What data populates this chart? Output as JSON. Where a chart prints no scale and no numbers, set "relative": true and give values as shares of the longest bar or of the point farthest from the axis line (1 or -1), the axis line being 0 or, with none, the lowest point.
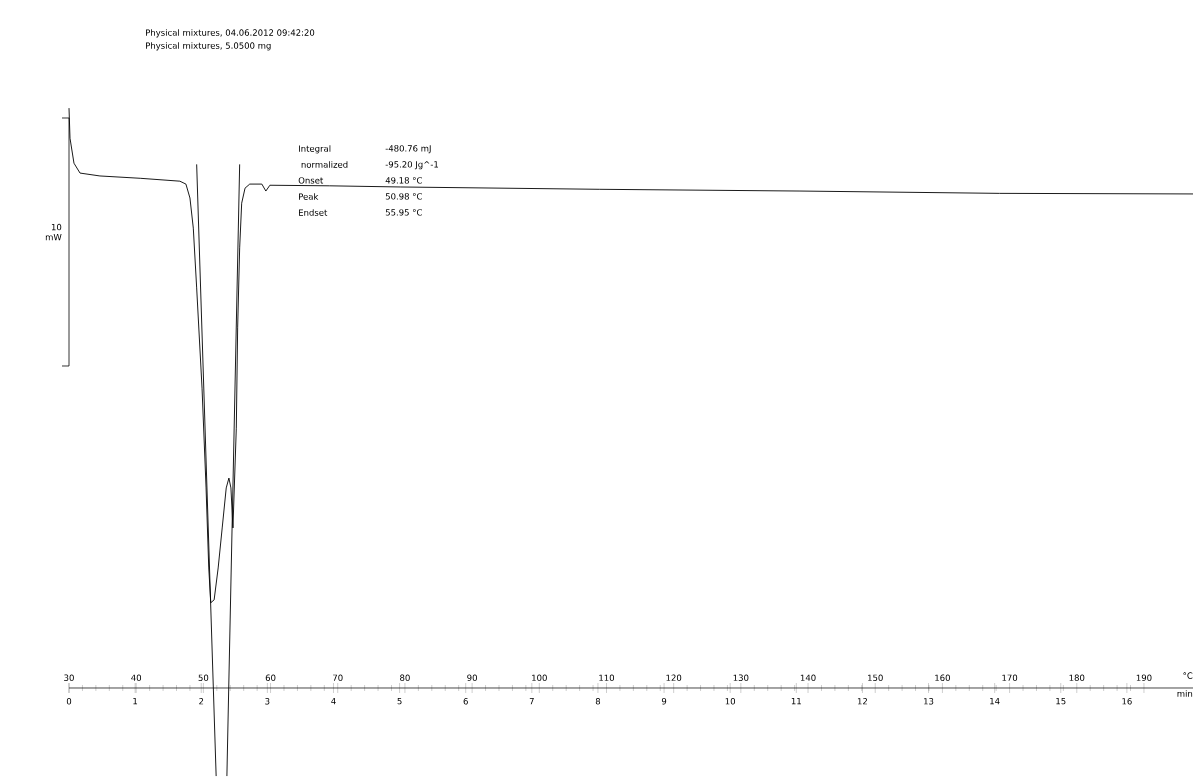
{
  "chart_data": {
    "type": "line",
    "relative": true,
    "marker": "none",
    "line_style": "solid",
    "xlim": [
      30,
      197.3
    ],
    "xticks": [
      30,
      40,
      50,
      60,
      70,
      80,
      90,
      100,
      110,
      120,
      130,
      140,
      150,
      160,
      170,
      180,
      190
    ],
    "x2lim": [
      0,
      17.0
    ],
    "x2ticks": [
      0,
      1,
      2,
      3,
      4,
      5,
      6,
      7,
      8,
      9,
      10,
      11,
      12,
      13,
      14,
      15,
      16
    ],
    "xlabel": "°C",
    "x2label": "min",
    "series": [
      {
        "color": "#000000",
        "x": [
          30.0,
          30.15,
          30.74,
          31.64,
          34.6,
          40.6,
          46.5,
          47.4,
          48.0,
          48.5,
          49.0,
          49.8,
          50.4,
          50.8,
          51.1,
          51.6,
          52.2,
          52.8,
          53.4,
          53.8,
          54.1,
          54.4,
          54.9,
          55.1,
          55.4,
          55.7,
          56.2,
          56.9,
          58.7,
          59.3,
          59.9,
          68.8,
          79.3,
          109.0,
          138.8,
          168.5,
          197.3
        ],
        "values": [
          1.0,
          0.948,
          0.905,
          0.888,
          0.883,
          0.879,
          0.874,
          0.869,
          0.845,
          0.793,
          0.69,
          0.517,
          0.345,
          0.207,
          0.147,
          0.152,
          0.207,
          0.276,
          0.345,
          0.362,
          0.345,
          0.276,
          0.448,
          0.621,
          0.759,
          0.836,
          0.862,
          0.869,
          0.869,
          0.857,
          0.867,
          0.866,
          0.864,
          0.86,
          0.857,
          0.853,
          0.852
        ]
      },
      {
        "color": "#000000",
        "x": [
          49.0,
          51.9
        ],
        "values": [
          0.903,
          -0.152
        ]
      },
      {
        "color": "#000000",
        "x": [
          55.4,
          53.5
        ],
        "values": [
          0.903,
          -0.152
        ]
      }
    ],
    "annotations": [
      "Physical mixtures, 04.06.2012 09:42:20",
      "Physical mixtures, 5.0500 mg",
      "Integral",
      "-480.76 mJ",
      "  normalized",
      "-95.20 Jg^-1",
      "Onset",
      "49.18 °C",
      "Peak",
      "50.98 °C",
      "Endset",
      "55.95 °C",
      "10 mW"
    ]
  }
}
